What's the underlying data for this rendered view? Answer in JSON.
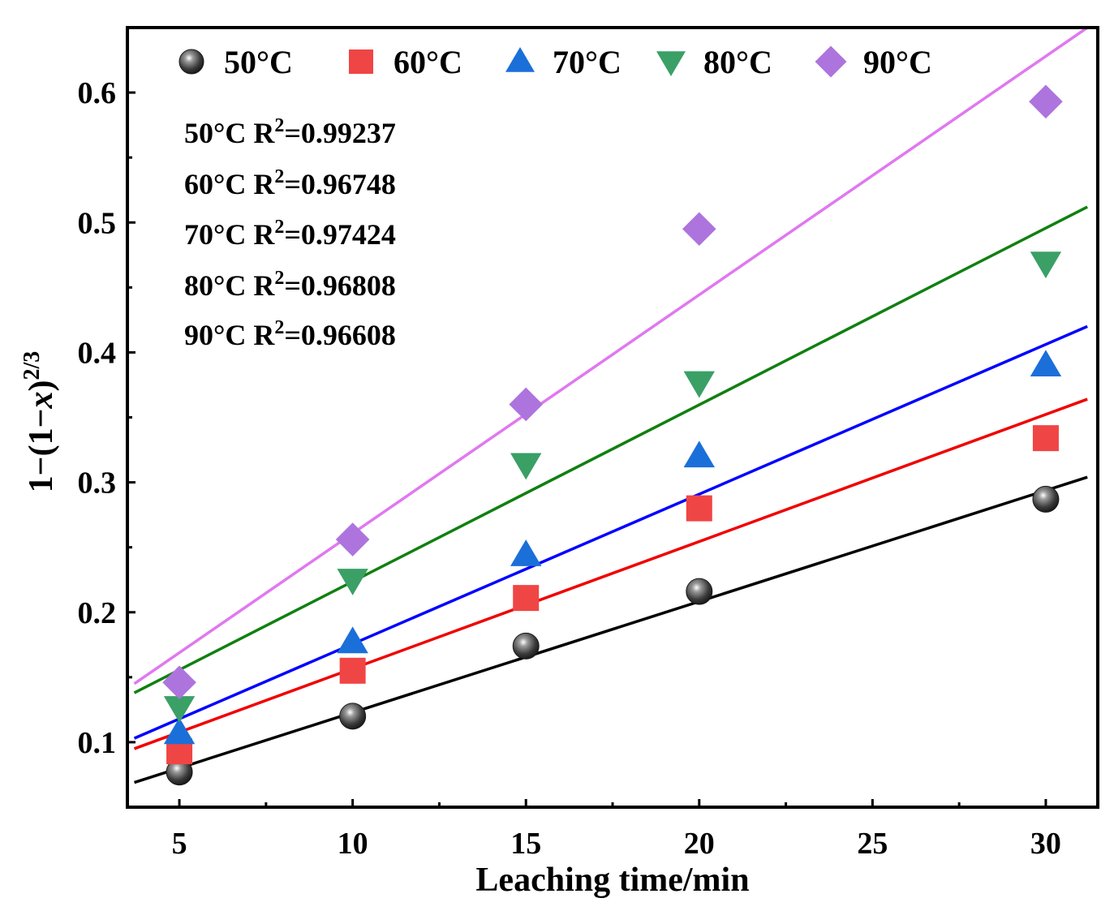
{
  "chart_data": {
    "type": "scatter",
    "xlabel": "Leaching time/min",
    "ylabel": {
      "base": "1−(1−",
      "var": "x",
      "close": ")",
      "exp": "2/3"
    },
    "xlim": [
      3.5,
      31.5
    ],
    "ylim": [
      0.05,
      0.65
    ],
    "x_ticks": [
      5,
      10,
      15,
      20,
      25,
      30
    ],
    "x_tick_labels": [
      "5",
      "10",
      "15",
      "20",
      "25",
      "30"
    ],
    "y_ticks": [
      0.1,
      0.2,
      0.3,
      0.4,
      0.5,
      0.6
    ],
    "y_tick_labels": [
      "0.1",
      "0.2",
      "0.3",
      "0.4",
      "0.5",
      "0.6"
    ],
    "x_minor": [
      7.5,
      12.5,
      17.5,
      22.5,
      27.5
    ],
    "y_minor": [
      0.15,
      0.25,
      0.35,
      0.45,
      0.55
    ],
    "legend_position": "top",
    "series": [
      {
        "name": "50°C",
        "marker": "sphere",
        "color": "#4a4a4a",
        "line_color": "#000000",
        "x": [
          5,
          10,
          15,
          20,
          30
        ],
        "y": [
          0.077,
          0.12,
          0.174,
          0.216,
          0.287
        ],
        "fit": {
          "x": [
            3.7,
            31.2
          ],
          "y": [
            0.069,
            0.304
          ]
        },
        "r2_label": "50°C R",
        "r2_value": "=0.99237"
      },
      {
        "name": "60°C",
        "marker": "square",
        "color": "#f04545",
        "line_color": "#f00000",
        "x": [
          5,
          10,
          15,
          20,
          30
        ],
        "y": [
          0.093,
          0.155,
          0.211,
          0.28,
          0.334
        ],
        "fit": {
          "x": [
            3.7,
            31.2
          ],
          "y": [
            0.095,
            0.364
          ]
        },
        "r2_label": "60°C R",
        "r2_value": "=0.96748"
      },
      {
        "name": "70°C",
        "marker": "triangle-up",
        "color": "#1b6fd8",
        "line_color": "#0000ff",
        "x": [
          5,
          10,
          15,
          20,
          30
        ],
        "y": [
          0.107,
          0.177,
          0.244,
          0.32,
          0.39
        ],
        "fit": {
          "x": [
            3.7,
            31.2
          ],
          "y": [
            0.103,
            0.42
          ]
        },
        "r2_label": "70°C R",
        "r2_value": "=0.97424"
      },
      {
        "name": "80°C",
        "marker": "triangle-down",
        "color": "#3aa066",
        "line_color": "#108010",
        "x": [
          5,
          10,
          15,
          20,
          30
        ],
        "y": [
          0.127,
          0.225,
          0.314,
          0.377,
          0.469
        ],
        "fit": {
          "x": [
            3.7,
            31.2
          ],
          "y": [
            0.138,
            0.512
          ]
        },
        "r2_label": "80°C R",
        "r2_value": "=0.96808"
      },
      {
        "name": "90°C",
        "marker": "diamond",
        "color": "#ad74dd",
        "line_color": "#e078f0",
        "x": [
          5,
          10,
          15,
          20,
          30
        ],
        "y": [
          0.146,
          0.256,
          0.36,
          0.495,
          0.593
        ],
        "fit": {
          "x": [
            3.7,
            31.2
          ],
          "y": [
            0.145,
            0.65
          ]
        },
        "r2_label": "90°C R",
        "r2_value": "=0.96608"
      }
    ]
  }
}
